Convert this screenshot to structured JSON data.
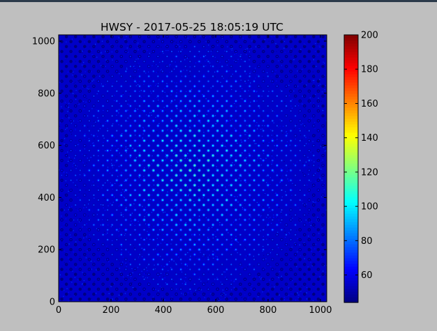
{
  "window": {
    "accent_bar_color": "#2b3a4a",
    "background_color": "#bfbfbf"
  },
  "chart_data": {
    "type": "heatmap",
    "title": "HWSY - 2017-05-25 18:05:19 UTC",
    "xlabel": "",
    "ylabel": "",
    "xlim": [
      0,
      1024
    ],
    "ylim": [
      0,
      1024
    ],
    "x_ticks": [
      "0",
      "200",
      "400",
      "600",
      "800",
      "1000"
    ],
    "y_ticks": [
      "0",
      "200",
      "400",
      "600",
      "800",
      "1000"
    ],
    "colormap": "jet",
    "color_range": [
      44,
      200
    ],
    "colorbar_ticks": [
      "60",
      "80",
      "100",
      "120",
      "140",
      "160",
      "180",
      "200"
    ],
    "background_level": 55,
    "spot_grid": {
      "spacing_x": 35,
      "spacing_y": 19,
      "row_offset_x": 17.5,
      "center": [
        512,
        512
      ],
      "pupil_radius": 470,
      "peak_center": 115,
      "peak_edge": 70
    },
    "grid": false,
    "colorbar_position": "right"
  }
}
